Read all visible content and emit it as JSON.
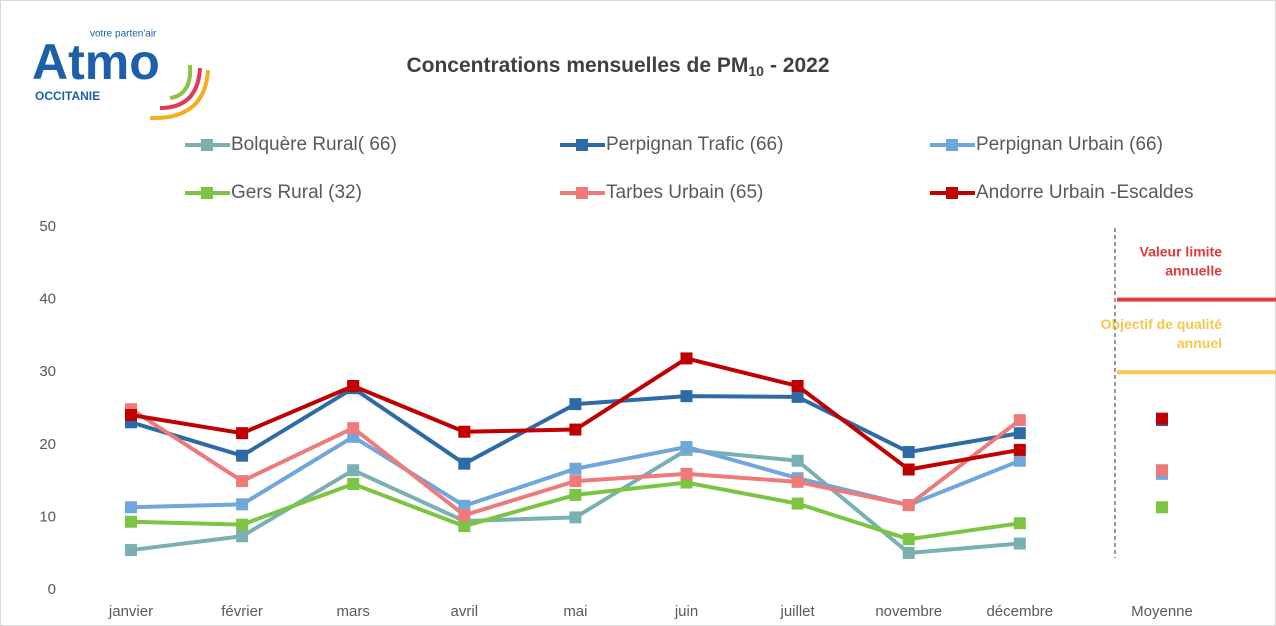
{
  "chart_data": {
    "type": "line",
    "logo": {
      "name": "Atmo",
      "tagline": "votre parten'air",
      "region": "OCCITANIE"
    },
    "title_prefix": "Concentrations mensuelles de PM",
    "title_subscript": "10",
    "title_suffix": "- 2022",
    "categories": [
      "janvier",
      "février",
      "mars",
      "avril",
      "mai",
      "juin",
      "juillet",
      "novembre",
      "décembre",
      "Moyenne"
    ],
    "ylim": [
      0,
      50
    ],
    "yticks": [
      0,
      10,
      20,
      30,
      40,
      50
    ],
    "series": [
      {
        "name": "Bolquère Rural( 66)",
        "color": "#7ab0b2",
        "values": [
          5.5,
          7.4,
          16.5,
          9.5,
          10,
          19.3,
          17.8,
          5.1,
          6.4,
          null
        ]
      },
      {
        "name": "Perpignan Trafic (66)",
        "color": "#2e6aa6",
        "values": [
          23.1,
          18.5,
          27.8,
          17.4,
          25.6,
          26.7,
          26.6,
          19,
          21.6,
          23.4
        ]
      },
      {
        "name": "Perpignan Urbain (66)",
        "color": "#6fa6dc",
        "values": [
          11.4,
          11.8,
          21.1,
          11.6,
          16.7,
          19.7,
          15.4,
          11.7,
          17.8,
          16
        ]
      },
      {
        "name": "Gers Rural (32)",
        "color": "#7cc444",
        "values": [
          9.4,
          9,
          14.6,
          8.8,
          13.1,
          14.8,
          11.9,
          7,
          9.2,
          11.4
        ]
      },
      {
        "name": "Tarbes Urbain (65)",
        "color": "#ee7a7a",
        "values": [
          24.9,
          15,
          22.3,
          10.3,
          15,
          16,
          14.9,
          11.7,
          23.4,
          16.5
        ]
      },
      {
        "name": "Andorre Urbain -Escaldes",
        "color": "#c00000",
        "values": [
          24.1,
          21.6,
          28.1,
          21.8,
          22.1,
          31.9,
          28.1,
          16.6,
          19.3,
          23.6
        ]
      }
    ],
    "reference_lines": [
      {
        "label": [
          "Valeur limite",
          "annuelle"
        ],
        "value": 40,
        "color": "#e2393b"
      },
      {
        "label": [
          "Objectif de qualité",
          "annuel"
        ],
        "value": 30,
        "color": "#f5c74a"
      }
    ]
  }
}
